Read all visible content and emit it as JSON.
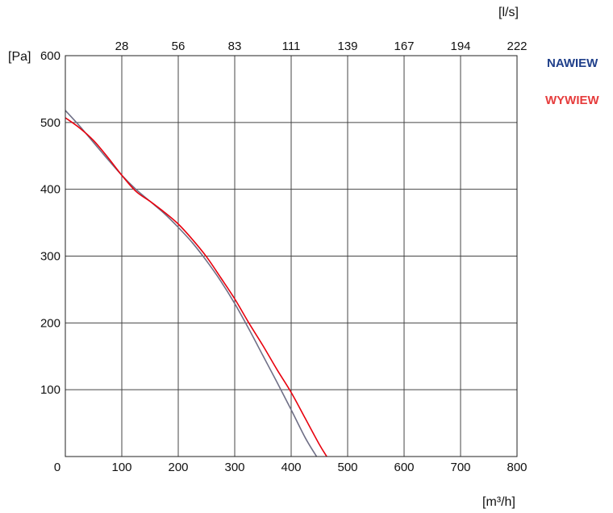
{
  "chart_data": {
    "type": "line",
    "x_unit_label": "[m³/h]",
    "y_unit_label": "[Pa]",
    "top_axis_unit_label": "[l/s]",
    "xlim": [
      0,
      800
    ],
    "ylim": [
      0,
      600
    ],
    "x_ticks": [
      "0",
      "100",
      "200",
      "300",
      "400",
      "500",
      "600",
      "700",
      "800"
    ],
    "y_ticks": [
      "100",
      "200",
      "300",
      "400",
      "500",
      "600"
    ],
    "top_ticks": [
      "28",
      "56",
      "83",
      "111",
      "139",
      "167",
      "194",
      "222"
    ],
    "grid": true,
    "legend_placement": "right",
    "series": [
      {
        "name": "NAWIEW",
        "color": "#1f3f8a",
        "line_color": "#6f6f86",
        "x": [
          0,
          25,
          50,
          75,
          100,
          125,
          150,
          175,
          200,
          225,
          250,
          275,
          300,
          325,
          350,
          375,
          400,
          425,
          445
        ],
        "y": [
          518,
          495,
          470,
          445,
          421,
          400,
          382,
          364,
          343,
          320,
          293,
          263,
          229,
          191,
          151,
          111,
          70,
          28,
          0
        ]
      },
      {
        "name": "WYWIEW",
        "color": "#e63c3c",
        "line_color": "#e8000d",
        "x": [
          0,
          25,
          50,
          75,
          100,
          125,
          150,
          175,
          200,
          225,
          250,
          275,
          300,
          325,
          350,
          375,
          400,
          425,
          450,
          463
        ],
        "y": [
          507,
          492,
          473,
          448,
          421,
          397,
          382,
          366,
          348,
          325,
          299,
          268,
          236,
          200,
          166,
          130,
          96,
          57,
          18,
          0
        ]
      }
    ]
  }
}
